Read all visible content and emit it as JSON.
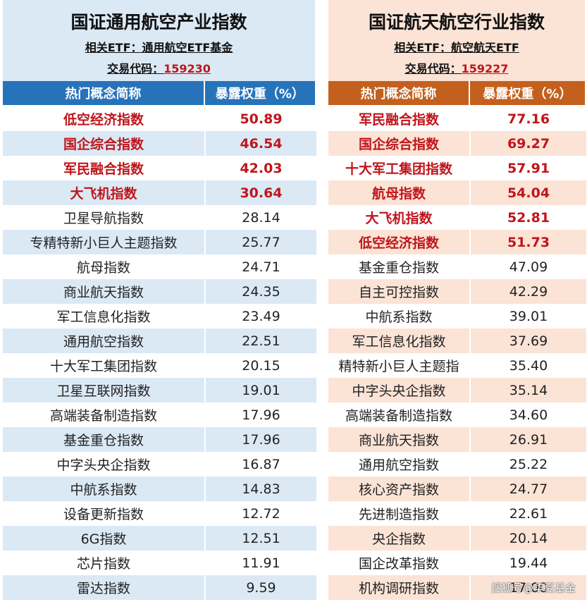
{
  "colors": {
    "blue_header": "#2773ba",
    "orange_header": "#c4601e",
    "highlight_red": "#c0151b"
  },
  "left": {
    "title": "国证通用航空产业指数",
    "etf_label": "相关ETF：",
    "etf_name": "通用航空ETF基金",
    "code_label": "交易代码：",
    "code": "159230",
    "col_name": "热门概念简称",
    "col_weight": "暴露权重（%）",
    "rows": [
      {
        "name": "低空经济指数",
        "value": "50.89",
        "hot": true
      },
      {
        "name": "国企综合指数",
        "value": "46.54",
        "hot": true
      },
      {
        "name": "军民融合指数",
        "value": "42.03",
        "hot": true
      },
      {
        "name": "大飞机指数",
        "value": "30.64",
        "hot": true
      },
      {
        "name": "卫星导航指数",
        "value": "28.14",
        "hot": false
      },
      {
        "name": "专精特新小巨人主题指数",
        "value": "25.77",
        "hot": false
      },
      {
        "name": "航母指数",
        "value": "24.71",
        "hot": false
      },
      {
        "name": "商业航天指数",
        "value": "24.35",
        "hot": false
      },
      {
        "name": "军工信息化指数",
        "value": "23.49",
        "hot": false
      },
      {
        "name": "通用航空指数",
        "value": "22.51",
        "hot": false
      },
      {
        "name": "十大军工集团指数",
        "value": "20.15",
        "hot": false
      },
      {
        "name": "卫星互联网指数",
        "value": "19.01",
        "hot": false
      },
      {
        "name": "高端装备制造指数",
        "value": "17.96",
        "hot": false
      },
      {
        "name": "基金重仓指数",
        "value": "17.96",
        "hot": false
      },
      {
        "name": "中字头央企指数",
        "value": "16.87",
        "hot": false
      },
      {
        "name": "中航系指数",
        "value": "14.83",
        "hot": false
      },
      {
        "name": "设备更新指数",
        "value": "12.72",
        "hot": false
      },
      {
        "name": "6G指数",
        "value": "12.51",
        "hot": false
      },
      {
        "name": "芯片指数",
        "value": "11.91",
        "hot": false
      },
      {
        "name": "雷达指数",
        "value": "9.59",
        "hot": false
      }
    ]
  },
  "right": {
    "title": "国证航天航空行业指数",
    "etf_label": "相关ETF：",
    "etf_name": "航空航天ETF",
    "code_label": "交易代码：",
    "code": "159227",
    "col_name": "热门概念简称",
    "col_weight": "暴露权重（%）",
    "rows": [
      {
        "name": "军民融合指数",
        "value": "77.16",
        "hot": true
      },
      {
        "name": "国企综合指数",
        "value": "69.27",
        "hot": true
      },
      {
        "name": "十大军工集团指数",
        "value": "57.91",
        "hot": true
      },
      {
        "name": "航母指数",
        "value": "54.04",
        "hot": true
      },
      {
        "name": "大飞机指数",
        "value": "52.81",
        "hot": true
      },
      {
        "name": "低空经济指数",
        "value": "51.73",
        "hot": true
      },
      {
        "name": "基金重仓指数",
        "value": "47.09",
        "hot": false
      },
      {
        "name": "自主可控指数",
        "value": "42.29",
        "hot": false
      },
      {
        "name": "中航系指数",
        "value": "39.01",
        "hot": false
      },
      {
        "name": "军工信息化指数",
        "value": "37.69",
        "hot": false
      },
      {
        "name": "精特新小巨人主题指",
        "value": "35.40",
        "hot": false
      },
      {
        "name": "中字头央企指数",
        "value": "35.14",
        "hot": false
      },
      {
        "name": "高端装备制造指数",
        "value": "34.60",
        "hot": false
      },
      {
        "name": "商业航天指数",
        "value": "26.91",
        "hot": false
      },
      {
        "name": "通用航空指数",
        "value": "25.22",
        "hot": false
      },
      {
        "name": "核心资产指数",
        "value": "24.77",
        "hot": false
      },
      {
        "name": "先进制造指数",
        "value": "22.61",
        "hot": false
      },
      {
        "name": "央企指数",
        "value": "20.14",
        "hot": false
      },
      {
        "name": "国企改革指数",
        "value": "19.44",
        "hot": false
      },
      {
        "name": "机构调研指数",
        "value": "17.00",
        "hot": false
      }
    ]
  },
  "watermark": "搜狐号@华夏基金"
}
